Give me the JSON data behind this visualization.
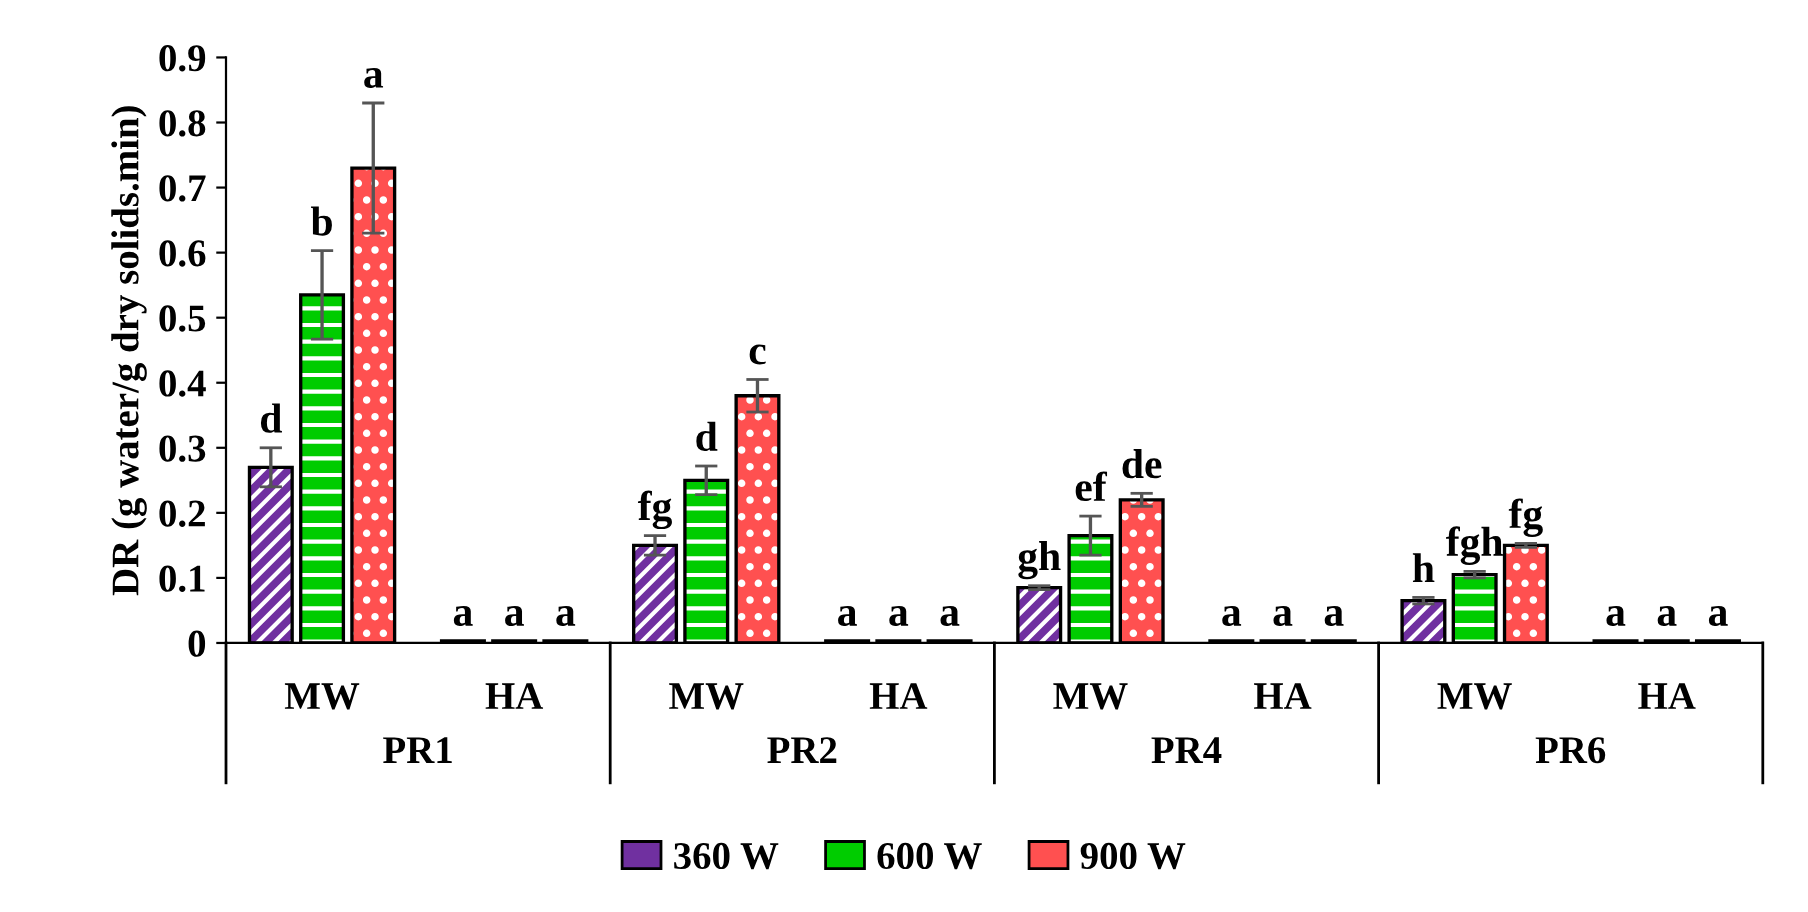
{
  "chart_data": {
    "type": "bar",
    "ylabel": "DR (g water/g dry solids.min)",
    "categories": [
      "MW",
      "HA",
      "MW",
      "HA",
      "MW",
      "HA",
      "MW",
      "HA"
    ],
    "annotations": [
      "PR1",
      "PR2",
      "PR4",
      "PR6"
    ],
    "series": [
      {
        "name": "360 W",
        "color": "#7030a0",
        "values": [
          0.27,
          0.003,
          0.15,
          0.003,
          0.085,
          0.003,
          0.065,
          0.003
        ],
        "errors": [
          0.03,
          null,
          0.015,
          null,
          0.003,
          null,
          0.005,
          null
        ],
        "value_labels": [
          "d",
          "a",
          "fg",
          "a",
          "gh",
          "a",
          "h",
          "a"
        ]
      },
      {
        "name": "600 W",
        "color": "#00cc00",
        "values": [
          0.535,
          0.003,
          0.25,
          0.003,
          0.165,
          0.003,
          0.105,
          0.003
        ],
        "errors": [
          0.068,
          null,
          0.022,
          null,
          0.03,
          null,
          0.005,
          null
        ],
        "value_labels": [
          "b",
          "a",
          "d",
          "a",
          "ef",
          "a",
          "fgh",
          "a"
        ]
      },
      {
        "name": "900 W",
        "color": "#ff5050",
        "values": [
          0.73,
          0.003,
          0.38,
          0.003,
          0.22,
          0.003,
          0.15,
          0.003
        ],
        "errors": [
          0.1,
          null,
          0.025,
          null,
          0.01,
          null,
          0.003,
          null
        ],
        "value_labels": [
          "a",
          "a",
          "c",
          "a",
          "de",
          "a",
          "fg",
          "a"
        ]
      }
    ],
    "ylim": [
      0,
      0.9
    ],
    "yticks": [
      0,
      0.1,
      0.2,
      0.3,
      0.4,
      0.5,
      0.6,
      0.7,
      0.8,
      0.9
    ],
    "grid": false,
    "legend": "bottom"
  }
}
